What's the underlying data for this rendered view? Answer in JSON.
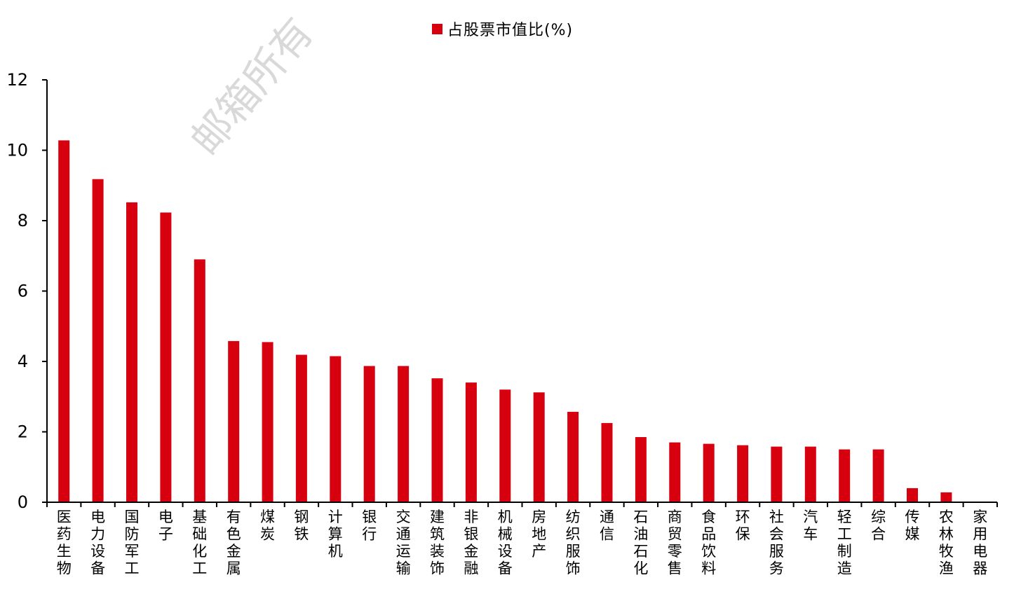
{
  "colors": {
    "bar": "#d7000f",
    "axis": "#000000",
    "watermark": "#d9d9d9"
  },
  "watermark": "邮箱所有",
  "chart_data": {
    "type": "bar",
    "title": "",
    "xlabel": "",
    "ylabel": "",
    "ylim": [
      0,
      12
    ],
    "yticks": [
      0,
      2,
      4,
      6,
      8,
      10,
      12
    ],
    "grid": false,
    "legend_position": "top-center",
    "categories": [
      "医药生物",
      "电力设备",
      "国防军工",
      "电子",
      "基础化工",
      "有色金属",
      "煤炭",
      "钢铁",
      "计算机",
      "银行",
      "交通运输",
      "建筑装饰",
      "非银金融",
      "机械设备",
      "房地产",
      "纺织服饰",
      "通信",
      "石油石化",
      "商贸零售",
      "食品饮料",
      "环保",
      "社会服务",
      "汽车",
      "轻工制造",
      "综合",
      "传媒",
      "农林牧渔",
      "家用电器"
    ],
    "series": [
      {
        "name": "占股票市值比(%)",
        "values": [
          10.28,
          9.18,
          8.52,
          8.23,
          6.9,
          4.58,
          4.55,
          4.19,
          4.15,
          3.87,
          3.87,
          3.52,
          3.4,
          3.2,
          3.12,
          2.57,
          2.25,
          1.85,
          1.7,
          1.66,
          1.62,
          1.58,
          1.58,
          1.5,
          1.5,
          0.4,
          0.28,
          0.0
        ]
      }
    ]
  }
}
